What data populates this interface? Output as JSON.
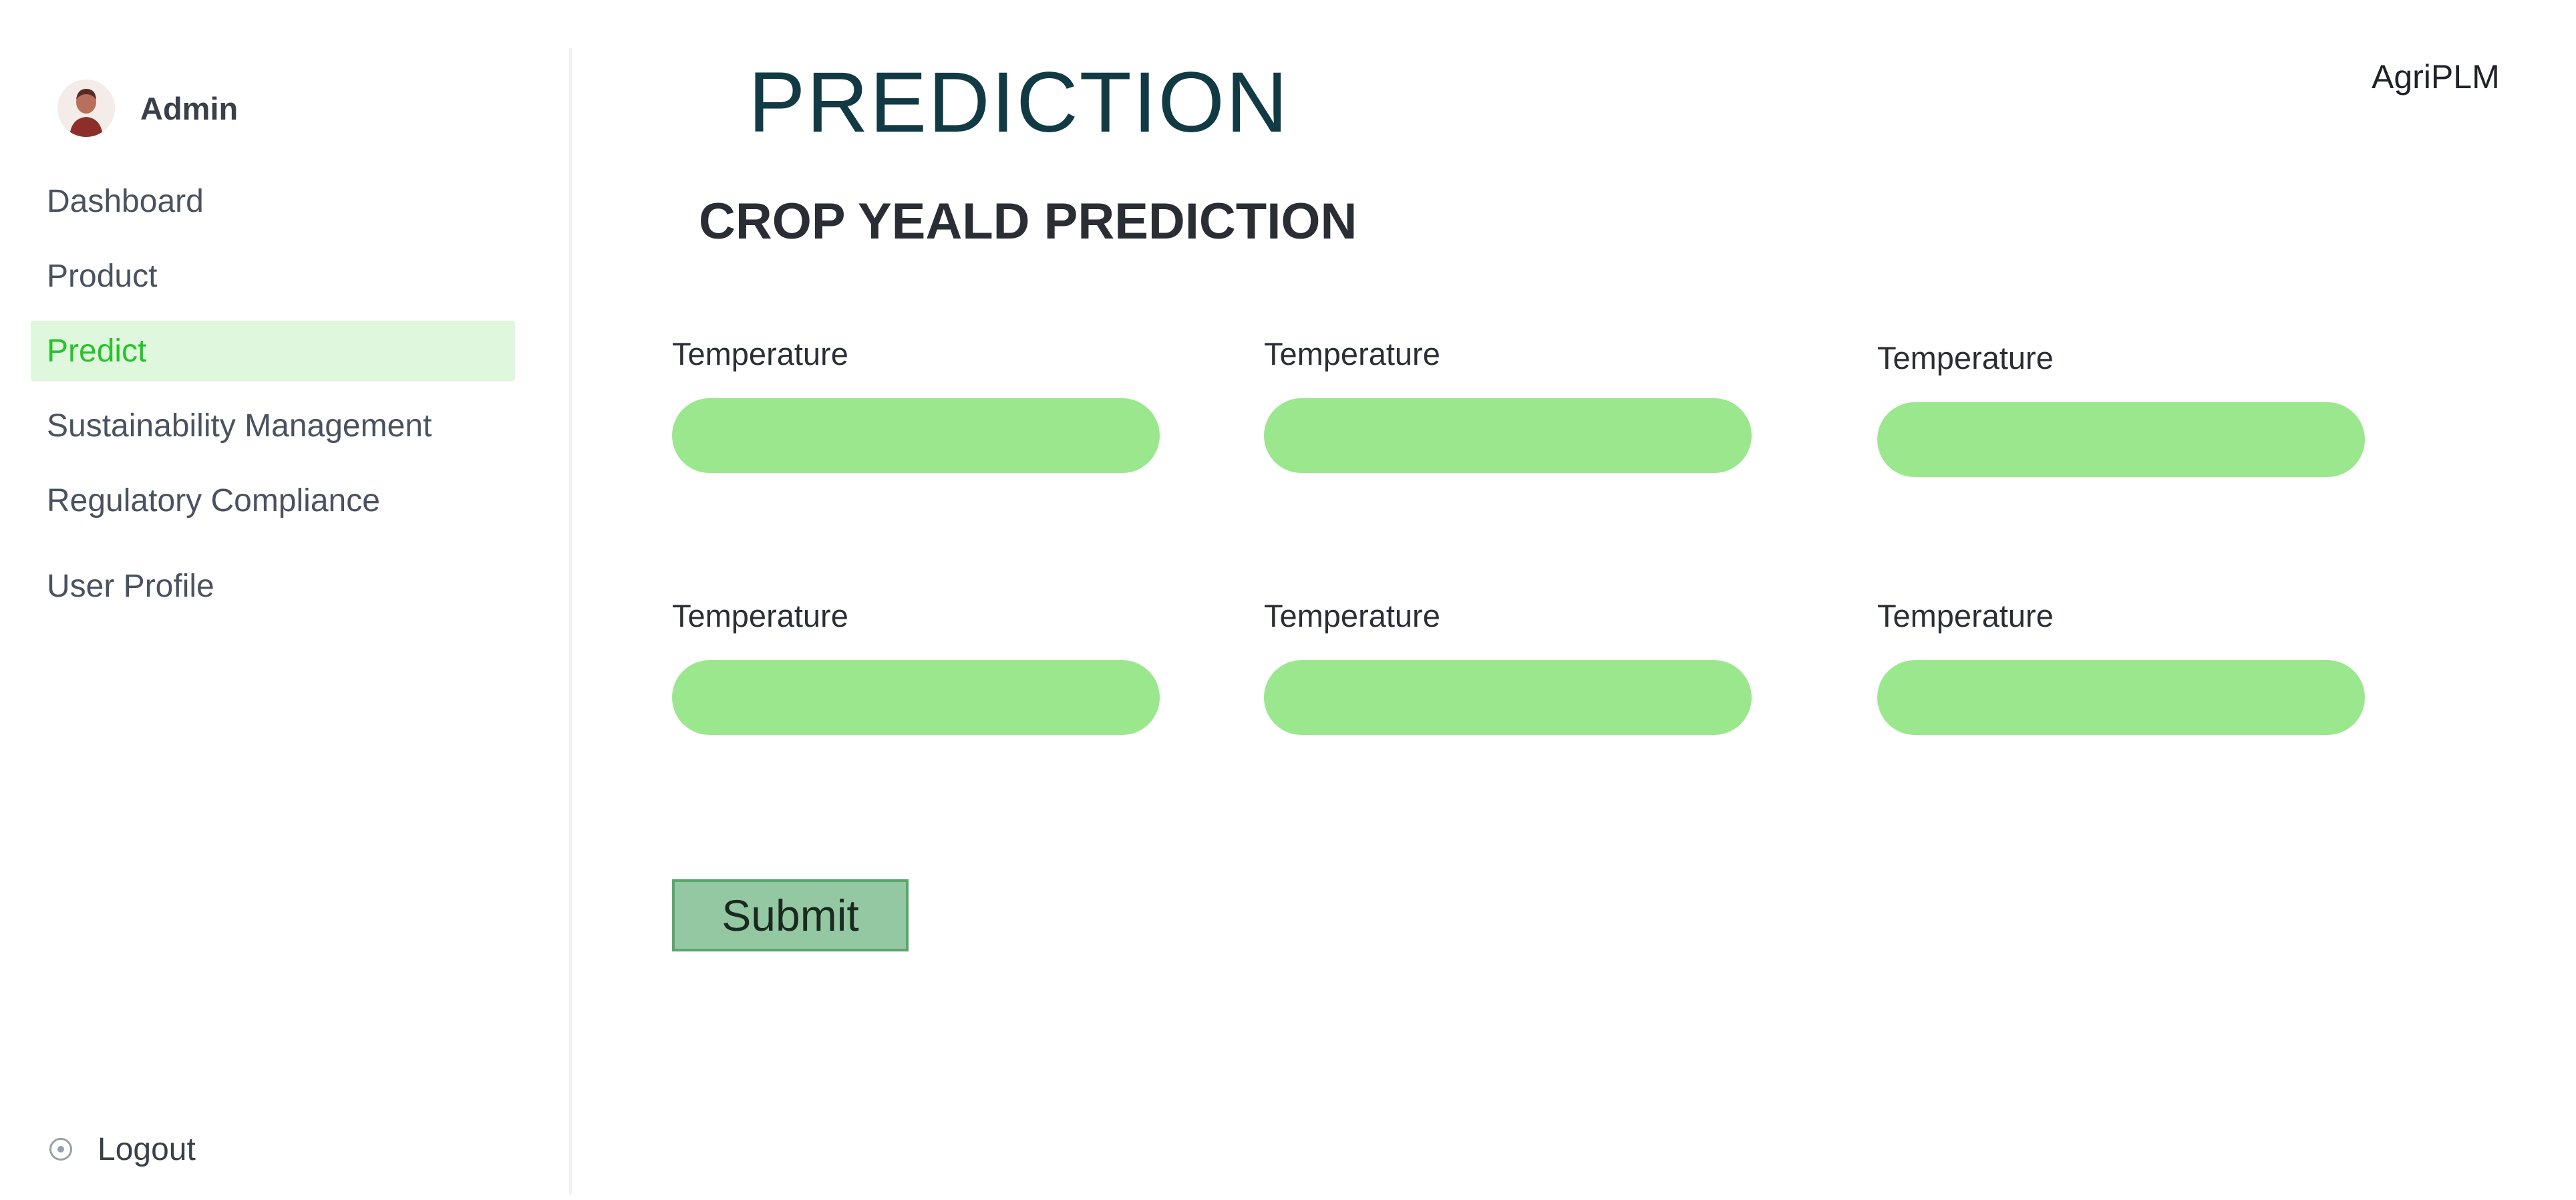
{
  "app": {
    "brand": "AgriPLM"
  },
  "sidebar": {
    "user": {
      "name": "Admin"
    },
    "items": [
      {
        "label": "Dashboard",
        "active": false
      },
      {
        "label": "Product",
        "active": false
      },
      {
        "label": "Predict",
        "active": true
      },
      {
        "label": "Sustainability Management",
        "active": false
      },
      {
        "label": "Regulatory Compliance",
        "active": false
      },
      {
        "label": "User Profile",
        "active": false
      }
    ],
    "logout_label": "Logout"
  },
  "main": {
    "title": "PREDICTION",
    "section_title": "CROP YEALD PREDICTION",
    "fields": [
      {
        "label": "Temperature",
        "value": ""
      },
      {
        "label": "Temperature",
        "value": ""
      },
      {
        "label": "Temperature",
        "value": ""
      },
      {
        "label": "Temperature",
        "value": ""
      },
      {
        "label": "Temperature",
        "value": ""
      },
      {
        "label": "Temperature",
        "value": ""
      }
    ],
    "submit_label": "Submit"
  },
  "colors": {
    "accent_green": "#27c22d",
    "active_bg": "#dff7dc",
    "input_bg": "#9ae78d",
    "title_color": "#123a44",
    "submit_bg": "#94c8a3"
  },
  "icons": {
    "avatar": "user-avatar",
    "logout": "logout-icon"
  }
}
